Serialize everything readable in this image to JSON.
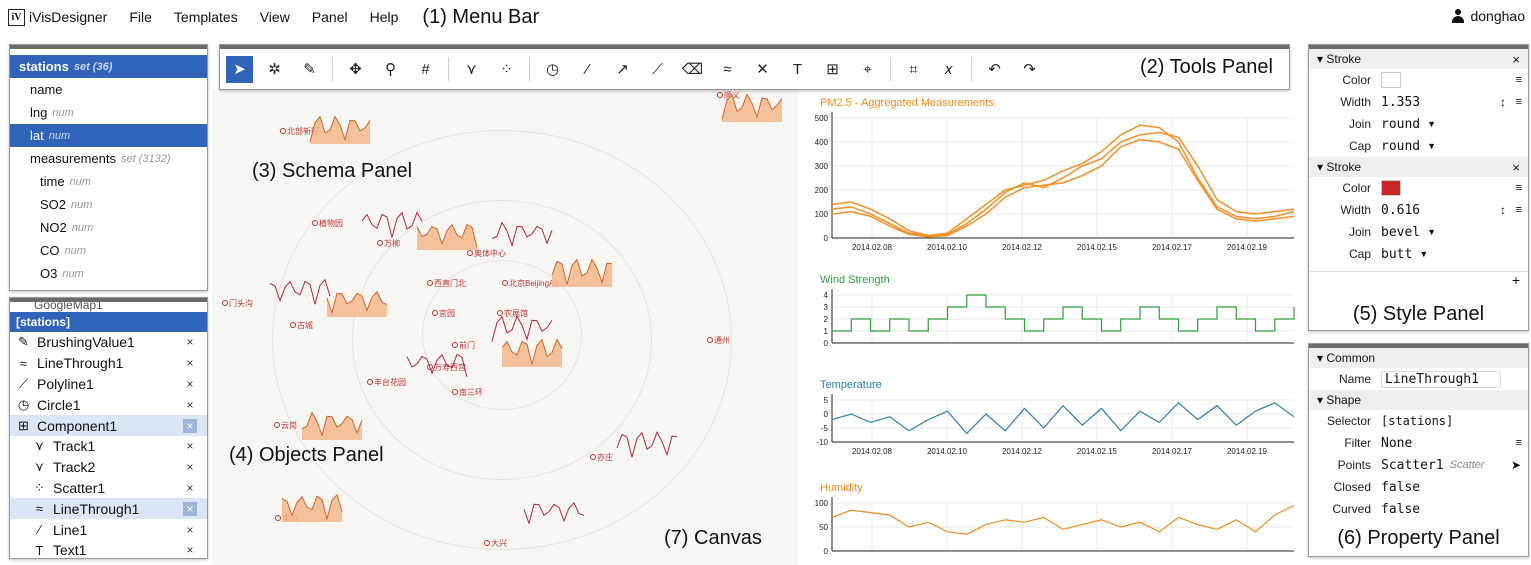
{
  "menu": {
    "logo": "iV",
    "app_name": "iVisDesigner",
    "items": [
      "File",
      "Templates",
      "View",
      "Panel",
      "Help"
    ],
    "callout": "(1) Menu Bar",
    "user": "donghao"
  },
  "schema": {
    "callout": "(3) Schema Panel",
    "rows": [
      {
        "label": "stations",
        "type": "set",
        "extra": "(36)",
        "level": "head",
        "selected": true
      },
      {
        "label": "name",
        "type": "",
        "extra": "",
        "level": "field",
        "selected": false
      },
      {
        "label": "lng",
        "type": "num",
        "extra": "",
        "level": "field",
        "selected": false
      },
      {
        "label": "lat",
        "type": "num",
        "extra": "",
        "level": "field",
        "selected": true
      },
      {
        "label": "measurements",
        "type": "set",
        "extra": "(3132)",
        "level": "field",
        "selected": false
      },
      {
        "label": "time",
        "type": "num",
        "extra": "",
        "level": "sub",
        "selected": false
      },
      {
        "label": "SO2",
        "type": "num",
        "extra": "",
        "level": "sub",
        "selected": false
      },
      {
        "label": "NO2",
        "type": "num",
        "extra": "",
        "level": "sub",
        "selected": false
      },
      {
        "label": "CO",
        "type": "num",
        "extra": "",
        "level": "sub",
        "selected": false
      },
      {
        "label": "O3",
        "type": "num",
        "extra": "",
        "level": "sub",
        "selected": false
      }
    ]
  },
  "objects": {
    "callout": "(4) Objects Panel",
    "cut_label": "GoogleMap1",
    "header": "[stations]",
    "rows": [
      {
        "label": "BrushingValue1",
        "icon": "brush-icon",
        "glyph": "✎",
        "child": false,
        "selected": false
      },
      {
        "label": "LineThrough1",
        "icon": "linethrough-icon",
        "glyph": "≈",
        "child": false,
        "selected": false
      },
      {
        "label": "Polyline1",
        "icon": "polyline-icon",
        "glyph": "⟋",
        "child": false,
        "selected": false
      },
      {
        "label": "Circle1",
        "icon": "circle-icon",
        "glyph": "◷",
        "child": false,
        "selected": false
      },
      {
        "label": "Component1",
        "icon": "component-icon",
        "glyph": "⊞",
        "child": false,
        "selected": true
      },
      {
        "label": "Track1",
        "icon": "track-icon",
        "glyph": "⋎",
        "child": true,
        "selected": false
      },
      {
        "label": "Track2",
        "icon": "track-icon",
        "glyph": "⋎",
        "child": true,
        "selected": false
      },
      {
        "label": "Scatter1",
        "icon": "scatter-icon",
        "glyph": "⁘",
        "child": true,
        "selected": false
      },
      {
        "label": "LineThrough1",
        "icon": "linethrough-icon",
        "glyph": "≈",
        "child": true,
        "selected": true
      },
      {
        "label": "Line1",
        "icon": "line-icon",
        "glyph": "⁄",
        "child": true,
        "selected": false
      },
      {
        "label": "Text1",
        "icon": "text-icon",
        "glyph": "T",
        "child": true,
        "selected": false
      }
    ],
    "remove_glyph": "×"
  },
  "tools": {
    "callout": "(2) Tools Panel",
    "items": [
      {
        "name": "select-tool",
        "glyph": "➤",
        "selected": true,
        "sep_after": false
      },
      {
        "name": "brushing-tool",
        "glyph": "✲",
        "selected": false,
        "sep_after": false
      },
      {
        "name": "brush-tool",
        "glyph": "✎",
        "selected": false,
        "sep_after": true
      },
      {
        "name": "move-tool",
        "glyph": "✥",
        "selected": false,
        "sep_after": false
      },
      {
        "name": "zoom-tool",
        "glyph": "⚲",
        "selected": false,
        "sep_after": false
      },
      {
        "name": "grid-tool",
        "glyph": "#",
        "selected": false,
        "sep_after": true
      },
      {
        "name": "track-tool",
        "glyph": "⋎",
        "selected": false,
        "sep_after": false
      },
      {
        "name": "scatter-tool",
        "glyph": "⁘",
        "selected": false,
        "sep_after": true
      },
      {
        "name": "circle-tool",
        "glyph": "◷",
        "selected": false,
        "sep_after": false
      },
      {
        "name": "line-tool",
        "glyph": "⁄",
        "selected": false,
        "sep_after": false
      },
      {
        "name": "arrow-line-tool",
        "glyph": "↗",
        "selected": false,
        "sep_after": false
      },
      {
        "name": "polyline-tool",
        "glyph": "⟋",
        "selected": false,
        "sep_after": false
      },
      {
        "name": "eraser-tool",
        "glyph": "⌫",
        "selected": false,
        "sep_after": false
      },
      {
        "name": "linethrough-tool",
        "glyph": "≈",
        "selected": false,
        "sep_after": false
      },
      {
        "name": "bezier-tool",
        "glyph": "✕",
        "selected": false,
        "sep_after": false
      },
      {
        "name": "text-tool",
        "glyph": "T",
        "selected": false,
        "sep_after": false
      },
      {
        "name": "component-tool",
        "glyph": "⊞",
        "selected": false,
        "sep_after": false
      },
      {
        "name": "map-tool",
        "glyph": "⌖",
        "selected": false,
        "sep_after": true
      },
      {
        "name": "align-tool",
        "glyph": "⌗",
        "selected": false,
        "sep_after": false
      },
      {
        "name": "expression-tool",
        "glyph": "𝑥",
        "selected": false,
        "sep_after": true
      },
      {
        "name": "undo-tool",
        "glyph": "↶",
        "selected": false,
        "sep_after": false
      },
      {
        "name": "redo-tool",
        "glyph": "↷",
        "selected": false,
        "sep_after": false
      }
    ]
  },
  "canvas": {
    "callout": "(7) Canvas",
    "cities": [
      "北部新区",
      "植物园",
      "万柳",
      "奥体中心",
      "西直门北",
      "北京BeijingAir",
      "门头沟",
      "官园",
      "农展馆",
      "古城",
      "前门",
      "丰台花园",
      "万寿西宫",
      "南三环",
      "云岗",
      "通州",
      "亦庄",
      "房山",
      "大兴",
      "顺义"
    ]
  },
  "charts": {
    "axis_color": "#222222",
    "grid_color": "#e9e9e9",
    "time_ticks": [
      "2014.02.08",
      "2014.02.10",
      "2014.02.12",
      "2014.02.15",
      "2014.02.17",
      "2014.02.19"
    ]
  },
  "chart_data": [
    {
      "type": "line",
      "title": "PM2.5 - Aggregated Measurements",
      "color": "#f08a1c",
      "ylim": [
        0,
        500
      ],
      "yticks": [
        0,
        100,
        200,
        300,
        400,
        500
      ],
      "x": [
        0,
        1,
        2,
        3,
        4,
        5,
        6,
        7,
        8,
        9,
        10,
        11,
        12,
        13,
        14,
        15,
        16,
        17,
        18,
        19,
        20,
        21,
        22,
        23,
        24
      ],
      "series": [
        {
          "values": [
            140,
            150,
            120,
            80,
            30,
            10,
            15,
            60,
            120,
            190,
            230,
            210,
            250,
            300,
            330,
            400,
            430,
            440,
            420,
            300,
            160,
            110,
            100,
            110,
            120
          ]
        },
        {
          "values": [
            120,
            130,
            100,
            60,
            20,
            10,
            20,
            80,
            140,
            200,
            220,
            240,
            280,
            310,
            360,
            430,
            470,
            460,
            400,
            250,
            130,
            90,
            80,
            90,
            110
          ]
        },
        {
          "values": [
            100,
            110,
            90,
            50,
            15,
            5,
            10,
            50,
            100,
            170,
            210,
            220,
            230,
            260,
            300,
            380,
            410,
            400,
            370,
            240,
            120,
            80,
            70,
            80,
            90
          ]
        }
      ]
    },
    {
      "type": "line",
      "title": "Wind Strength",
      "color": "#2e9e3c",
      "ylim": [
        0,
        4
      ],
      "yticks": [
        0,
        1,
        2,
        3,
        4
      ],
      "x": [
        0,
        1,
        2,
        3,
        4,
        5,
        6,
        7,
        8,
        9,
        10,
        11,
        12,
        13,
        14,
        15,
        16,
        17,
        18,
        19,
        20,
        21,
        22,
        23,
        24
      ],
      "values": [
        1,
        2,
        1,
        2,
        1,
        2,
        3,
        4,
        3,
        2,
        1,
        2,
        3,
        2,
        1,
        2,
        3,
        2,
        1,
        2,
        3,
        2,
        1,
        2,
        3
      ]
    },
    {
      "type": "line",
      "title": "Temperature",
      "color": "#2b7fb8",
      "ylim": [
        -10,
        5
      ],
      "yticks": [
        -10,
        -5,
        0,
        5
      ],
      "x": [
        0,
        1,
        2,
        3,
        4,
        5,
        6,
        7,
        8,
        9,
        10,
        11,
        12,
        13,
        14,
        15,
        16,
        17,
        18,
        19,
        20,
        21,
        22,
        23,
        24
      ],
      "values": [
        -2,
        0,
        -3,
        -1,
        -6,
        -2,
        1,
        -7,
        0,
        -6,
        2,
        -5,
        3,
        -4,
        2,
        -6,
        1,
        -3,
        4,
        -2,
        3,
        -4,
        1,
        4,
        -1
      ]
    },
    {
      "type": "line",
      "title": "Humidity",
      "color": "#f08a1c",
      "ylim": [
        0,
        100
      ],
      "yticks": [
        0,
        50,
        100
      ],
      "x": [
        0,
        1,
        2,
        3,
        4,
        5,
        6,
        7,
        8,
        9,
        10,
        11,
        12,
        13,
        14,
        15,
        16,
        17,
        18,
        19,
        20,
        21,
        22,
        23,
        24
      ],
      "values": [
        70,
        85,
        80,
        75,
        50,
        60,
        40,
        35,
        55,
        65,
        60,
        70,
        45,
        55,
        65,
        50,
        60,
        40,
        70,
        55,
        45,
        65,
        40,
        75,
        95
      ]
    }
  ],
  "style": {
    "callout": "(5) Style Panel",
    "section_label": "Stroke",
    "close_glyph": "×",
    "list_glyph": "≡",
    "step_glyph": "↕",
    "caret": "▼",
    "plus": "+",
    "strokes": [
      {
        "color": "#ffffff",
        "width": "1.353",
        "join": "round",
        "cap": "round"
      },
      {
        "color": "#c8262b",
        "width": "0.616",
        "join": "bevel",
        "cap": "butt"
      }
    ],
    "labels": {
      "color": "Color",
      "width": "Width",
      "join": "Join",
      "cap": "Cap"
    }
  },
  "property": {
    "callout": "(6) Property Panel",
    "common_label": "Common",
    "shape_label": "Shape",
    "name_label": "Name",
    "name_value": "LineThrough1",
    "selector_label": "Selector",
    "selector_value": "[stations]",
    "filter_label": "Filter",
    "filter_value": "None",
    "points_label": "Points",
    "points_value": "Scatter1",
    "points_type": "Scatter",
    "closed_label": "Closed",
    "closed_value": "false",
    "curved_label": "Curved",
    "curved_value": "false"
  }
}
